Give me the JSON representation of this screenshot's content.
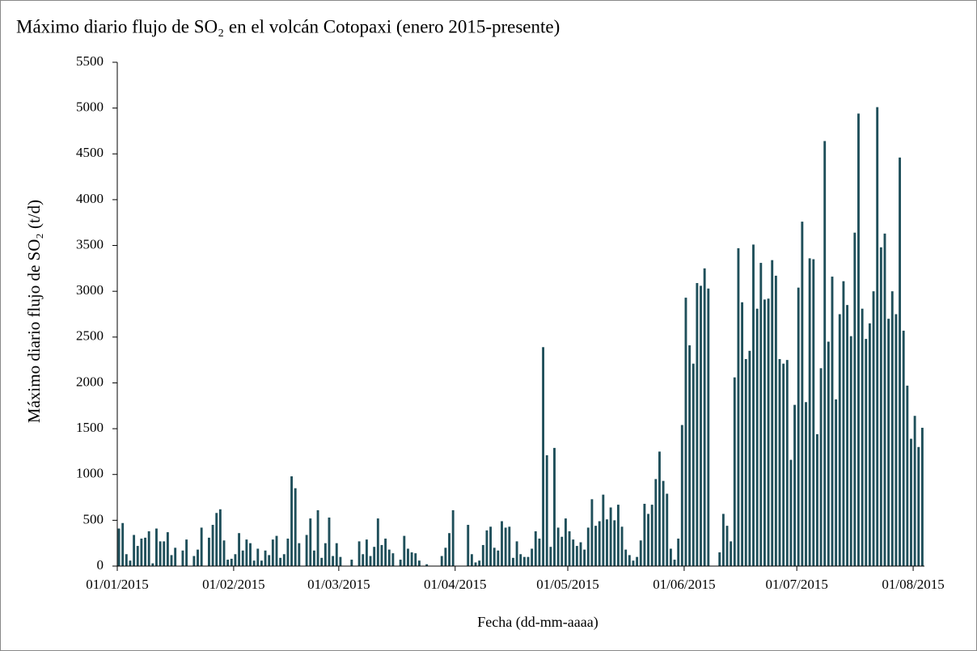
{
  "chart_data": {
    "type": "bar",
    "title": "Máximo diario flujo de SO₂ en el volcán Cotopaxi (enero 2015-presente)",
    "x_label": "Fecha (dd-mm-aaaa)",
    "y_label": "Máximo diario flujo de SO₂ (t/d)",
    "color": "#1f4f5a",
    "ylim": [
      0,
      5500
    ],
    "yticks": [
      0,
      500,
      1000,
      1500,
      2000,
      2500,
      3000,
      3500,
      4000,
      4500,
      5000,
      5500
    ],
    "grid": false,
    "categories": [
      "01/01/2015",
      null,
      null,
      null,
      null,
      null,
      null,
      null,
      null,
      null,
      null,
      null,
      null,
      null,
      null,
      null,
      null,
      null,
      null,
      null,
      null,
      null,
      null,
      null,
      null,
      null,
      null,
      null,
      null,
      null,
      null,
      "01/02/2015",
      null,
      null,
      null,
      null,
      null,
      null,
      null,
      null,
      null,
      null,
      null,
      null,
      null,
      null,
      null,
      null,
      null,
      null,
      null,
      null,
      null,
      null,
      null,
      null,
      null,
      null,
      null,
      "01/03/2015",
      null,
      null,
      null,
      null,
      null,
      null,
      null,
      null,
      null,
      null,
      null,
      null,
      null,
      null,
      null,
      null,
      null,
      null,
      null,
      null,
      null,
      null,
      null,
      null,
      null,
      null,
      null,
      null,
      null,
      null,
      "01/04/2015",
      null,
      null,
      null,
      null,
      null,
      null,
      null,
      null,
      null,
      null,
      null,
      null,
      null,
      null,
      null,
      null,
      null,
      null,
      null,
      null,
      null,
      null,
      null,
      null,
      null,
      null,
      null,
      null,
      null,
      "01/05/2015",
      null,
      null,
      null,
      null,
      null,
      null,
      null,
      null,
      null,
      null,
      null,
      null,
      null,
      null,
      null,
      null,
      null,
      null,
      null,
      null,
      null,
      null,
      null,
      null,
      null,
      null,
      null,
      null,
      null,
      null,
      "01/06/2015",
      null,
      null,
      null,
      null,
      null,
      null,
      null,
      null,
      null,
      null,
      null,
      null,
      null,
      null,
      null,
      null,
      null,
      null,
      null,
      null,
      null,
      null,
      null,
      null,
      null,
      null,
      null,
      null,
      null,
      "01/07/2015",
      null,
      null,
      null,
      null,
      null,
      null,
      null,
      null,
      null,
      null,
      null,
      null,
      null,
      null,
      null,
      null,
      null,
      null,
      null,
      null,
      null,
      null,
      null,
      null,
      null,
      null,
      null,
      null,
      null,
      null,
      "01/08/2015",
      null,
      null
    ],
    "values": [
      410,
      470,
      130,
      60,
      340,
      220,
      300,
      310,
      380,
      30,
      410,
      270,
      270,
      370,
      120,
      200,
      0,
      170,
      290,
      0,
      110,
      180,
      420,
      0,
      310,
      450,
      580,
      620,
      280,
      70,
      80,
      130,
      360,
      170,
      290,
      250,
      60,
      190,
      60,
      170,
      120,
      290,
      330,
      90,
      130,
      300,
      980,
      850,
      250,
      0,
      340,
      520,
      170,
      610,
      90,
      250,
      530,
      110,
      250,
      100,
      0,
      0,
      70,
      0,
      270,
      130,
      290,
      110,
      210,
      520,
      230,
      300,
      180,
      140,
      0,
      70,
      330,
      190,
      150,
      140,
      60,
      0,
      20,
      0,
      0,
      0,
      110,
      200,
      360,
      610,
      0,
      0,
      0,
      450,
      130,
      40,
      60,
      230,
      390,
      430,
      200,
      170,
      490,
      420,
      430,
      90,
      270,
      130,
      100,
      100,
      190,
      380,
      300,
      2390,
      1210,
      210,
      1290,
      420,
      320,
      520,
      380,
      290,
      220,
      260,
      180,
      420,
      730,
      440,
      490,
      780,
      510,
      640,
      500,
      670,
      430,
      180,
      120,
      60,
      100,
      280,
      680,
      570,
      670,
      950,
      1250,
      930,
      790,
      190,
      70,
      300,
      1540,
      2930,
      2410,
      2210,
      3090,
      3060,
      3250,
      3030,
      0,
      0,
      150,
      570,
      440,
      270,
      2060,
      3470,
      2880,
      2260,
      2350,
      3510,
      2810,
      3310,
      2910,
      2920,
      3340,
      3170,
      2260,
      2210,
      2250,
      1160,
      1760,
      3040,
      3760,
      1790,
      3360,
      3350,
      1440,
      2160,
      4640,
      2450,
      3160,
      1820,
      2750,
      3110,
      2850,
      2510,
      3640,
      4940,
      2810,
      2480,
      2650,
      3000,
      5010,
      3480,
      3630,
      2700,
      3000,
      2750,
      4460,
      2570,
      1970,
      1390,
      1640,
      1300,
      1510
    ]
  }
}
